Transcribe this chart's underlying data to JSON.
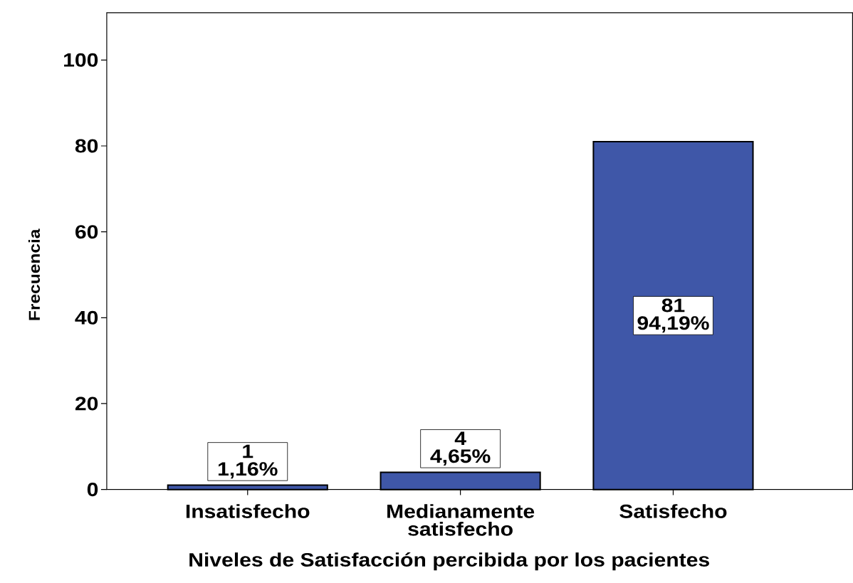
{
  "chart_data": {
    "type": "bar",
    "categories": [
      "Insatisfecho",
      "Medianamente satisfecho",
      "Satisfecho"
    ],
    "values": [
      1,
      4,
      81
    ],
    "color": "#3f57a8",
    "value_labels": [
      "1 1,16%",
      "4 4,65%",
      "81 94,19%"
    ],
    "xlabel": "Niveles de Satisfacción percibida por los pacientes",
    "ylabel": "Frecuencia",
    "ylim": [
      0,
      111
    ],
    "yticks": [
      0,
      20,
      40,
      60,
      80,
      100
    ]
  }
}
